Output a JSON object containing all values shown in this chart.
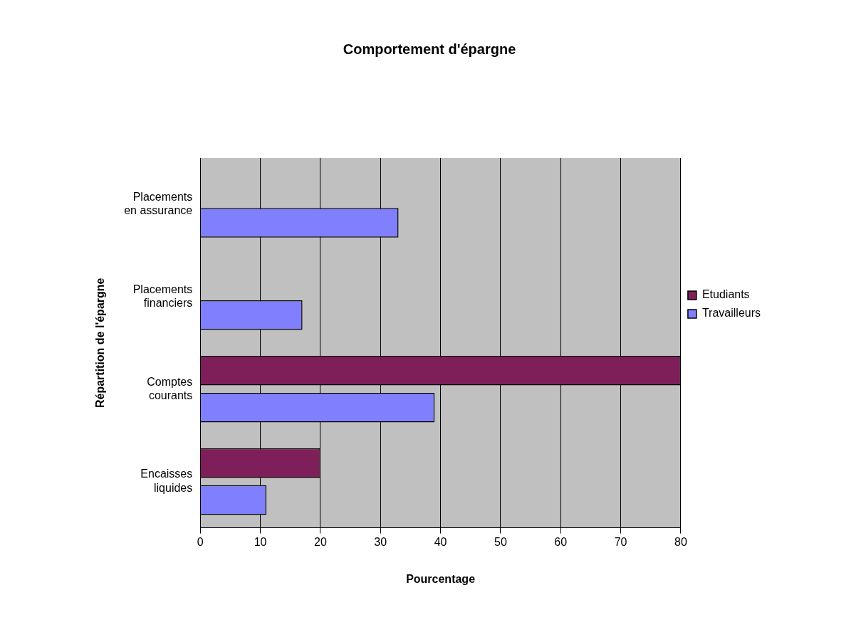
{
  "chart_data": {
    "type": "bar",
    "orientation": "horizontal",
    "title": "Comportement d'épargne",
    "xlabel": "Pourcentage",
    "ylabel": "Répartition de l'épargne",
    "categories": [
      "Placements en assurance",
      "Placements financiers",
      "Comptes courants",
      "Encaisses liquides"
    ],
    "series": [
      {
        "name": "Etudiants",
        "color": "#7f1f5a",
        "values": [
          0,
          0,
          80,
          20
        ]
      },
      {
        "name": "Travailleurs",
        "color": "#8080ff",
        "values": [
          33,
          17,
          39,
          11
        ]
      }
    ],
    "xlim": [
      0,
      80
    ],
    "xticks": [
      0,
      10,
      20,
      30,
      40,
      50,
      60,
      70,
      80
    ],
    "grid": "x",
    "legend": "right"
  }
}
